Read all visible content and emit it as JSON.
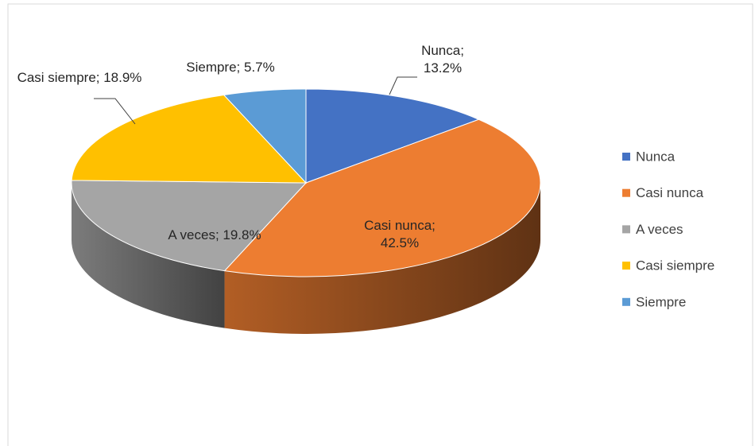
{
  "chart_data": {
    "type": "pie",
    "categories": [
      "Nunca",
      "Casi nunca",
      "A veces",
      "Casi siempre",
      "Siempre"
    ],
    "values": [
      13.2,
      42.5,
      19.8,
      18.9,
      5.7
    ],
    "value_labels": [
      "Nunca; 13.2%",
      "Casi nunca; 42.5%",
      "A veces; 19.8%",
      "Casi siempre; 18.9%",
      "Siempre; 5.7%"
    ],
    "colors": [
      "#4472c4",
      "#ed7d31",
      "#a5a5a5",
      "#ffc000",
      "#5b9bd5"
    ],
    "legend": "right"
  }
}
